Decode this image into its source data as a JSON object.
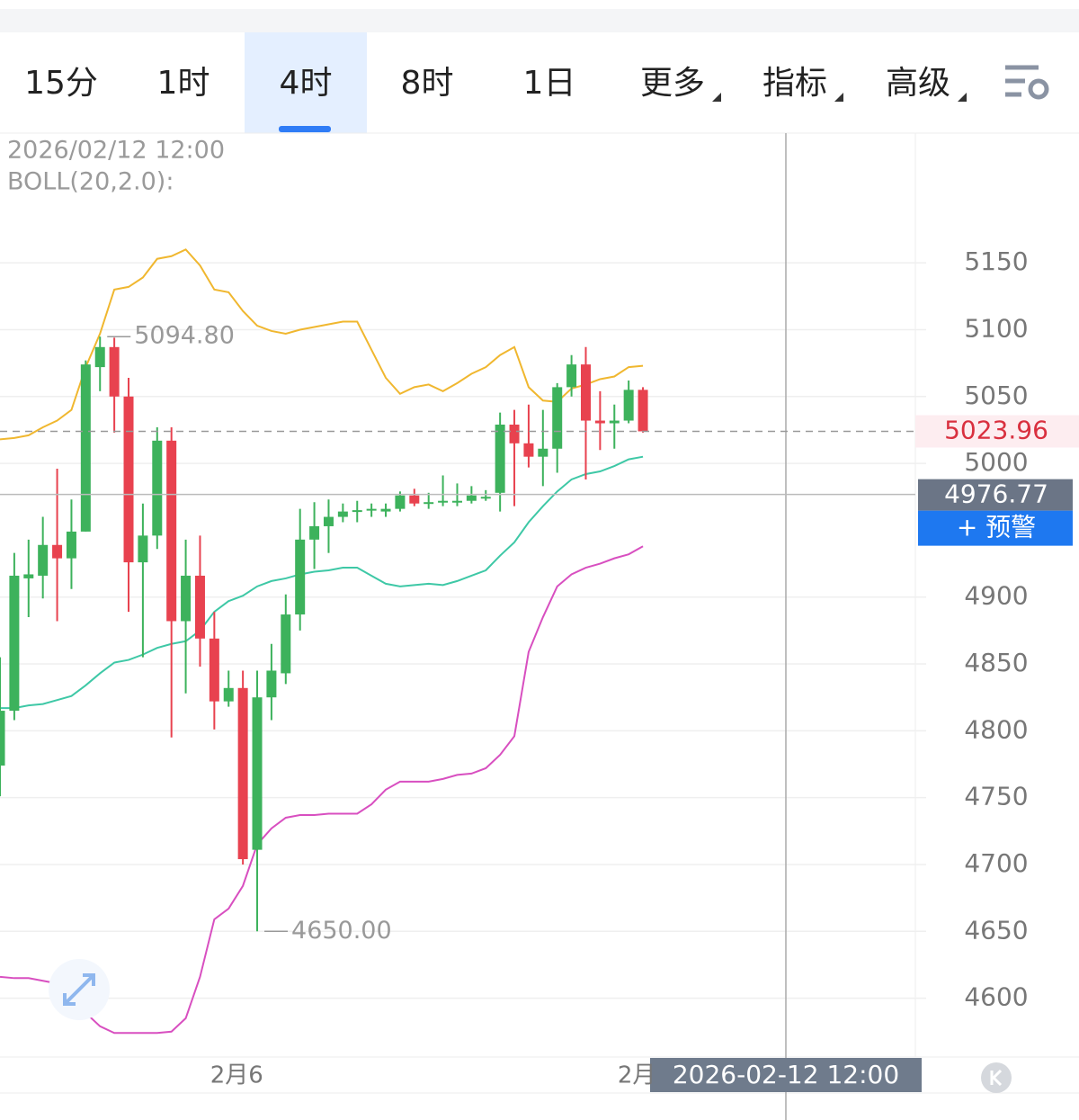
{
  "tabs": [
    "15分",
    "1时",
    "4时",
    "8时",
    "1日",
    "更多",
    "指标",
    "高级"
  ],
  "active_tab": 2,
  "chart_data": {
    "type": "candlestick",
    "info_time": "2026/02/12 12:00",
    "indicator": "BOLL(20,2.0):",
    "categories": [
      null,
      null,
      null,
      null,
      null,
      null,
      null,
      null,
      null,
      null,
      null,
      null,
      null,
      null,
      null,
      null,
      "2月6",
      null,
      null,
      null,
      null,
      null,
      null,
      null,
      null,
      null,
      null,
      null,
      null,
      null,
      null,
      null,
      null,
      null,
      null,
      null,
      null,
      null,
      null,
      null,
      null,
      null,
      null,
      null,
      "2月",
      null
    ],
    "open": [
      4774,
      4815,
      4914,
      4916,
      4939,
      4929,
      4949,
      5072,
      5087,
      5050,
      4926,
      4946,
      5017,
      4882,
      4916,
      4869,
      4822,
      4832,
      4711,
      4825,
      4843,
      4887,
      4943,
      4953,
      4960,
      4964,
      4965,
      4964,
      4966,
      4976,
      4970,
      4971,
      4971,
      4972,
      4974,
      4978,
      5029,
      5015,
      5005,
      5011,
      5057,
      5074,
      5032,
      5030,
      5032,
      5055
    ],
    "high": [
      4855,
      4933,
      4943,
      4960,
      4996,
      4973,
      5077,
      5094.8,
      5094,
      5064,
      4970,
      5027,
      5027,
      4943,
      4946,
      4889,
      4845,
      4845,
      4845,
      4865,
      4902,
      4966,
      4971,
      4973,
      4970,
      4972,
      4970,
      4970,
      4979,
      4981,
      4978,
      4991,
      4985,
      4983,
      4980,
      5038,
      5040,
      5044,
      5040,
      5060,
      5081,
      5087,
      5054,
      5044,
      5062,
      5057
    ],
    "low": [
      4751,
      4808,
      4885,
      4899,
      4882,
      4906,
      4949,
      5054,
      5023,
      4889,
      4855,
      4936,
      4795,
      4828,
      4848,
      4801,
      4818,
      4700,
      4650,
      4808,
      4835,
      4875,
      4921,
      4933,
      4956,
      4956,
      4960,
      4960,
      4964,
      4968,
      4966,
      4968,
      4968,
      4970,
      4972,
      4964,
      4968,
      4997,
      4983,
      4993,
      5050,
      4988,
      5010,
      5011,
      5030,
      5023
    ],
    "close": [
      4815,
      4916,
      4917,
      4939,
      4929,
      4949,
      5074,
      5087,
      5050,
      4926,
      4946,
      5017,
      4882,
      4916,
      4869,
      4822,
      4832,
      4704,
      4825,
      4845,
      4887,
      4943,
      4953,
      4960,
      4964,
      4965,
      4966,
      4966,
      4976,
      4970,
      4971,
      4972,
      4972,
      4976,
      4975,
      5029,
      5015,
      5005,
      5011,
      5057,
      5074,
      5032,
      5030,
      5032,
      5055,
      5023.96
    ],
    "up_color": "#3db25c",
    "down_color": "#e8424f",
    "series": [
      {
        "color": "#f0b72f",
        "values": [
          5018,
          5019,
          5021,
          5027,
          5032,
          5040,
          5072,
          5097,
          5130,
          5132,
          5139,
          5153,
          5155,
          5160,
          5148,
          5130,
          5128,
          5114,
          5103,
          5099,
          5097,
          5100,
          5102,
          5104,
          5106,
          5106,
          5085,
          5064,
          5052,
          5057,
          5059,
          5054,
          5060,
          5067,
          5072,
          5081,
          5087,
          5057,
          5047,
          5046,
          5056,
          5059,
          5063,
          5065,
          5072,
          5073
        ]
      },
      {
        "color": "#3ec8a6",
        "values": [
          4817,
          4817,
          4819,
          4820,
          4823,
          4826,
          4834,
          4843,
          4851,
          4853,
          4857,
          4862,
          4865,
          4867,
          4875,
          4889,
          4897,
          4901,
          4908,
          4912,
          4914,
          4917,
          4919,
          4920,
          4922,
          4922,
          4916,
          4910,
          4908,
          4909,
          4910,
          4909,
          4912,
          4916,
          4920,
          4931,
          4941,
          4956,
          4968,
          4979,
          4988,
          4992,
          4994,
          4998,
          5003,
          5005
        ]
      },
      {
        "color": "#d84fc0",
        "values": [
          4616,
          4615,
          4615,
          4613,
          4611,
          4606,
          4589,
          4579,
          4574,
          4574,
          4574,
          4574,
          4575,
          4585,
          4616,
          4659,
          4667,
          4684,
          4715,
          4727,
          4735,
          4737,
          4737,
          4738,
          4738,
          4738,
          4745,
          4756,
          4762,
          4762,
          4762,
          4764,
          4767,
          4768,
          4772,
          4782,
          4796,
          4859,
          4885,
          4908,
          4917,
          4922,
          4925,
          4929,
          4932,
          4938
        ]
      }
    ],
    "max_label": {
      "value": 5094.8,
      "label": "5094.80"
    },
    "min_label": {
      "value": 4650,
      "label": "4650.00"
    },
    "last_price": 5023.96,
    "crosshair": {
      "price": 4976.77,
      "time": "2026-02-12 12:00"
    },
    "alert_button": "+ 预警",
    "ylim": [
      4556,
      5247
    ],
    "yticks": [
      4600,
      4650,
      4700,
      4750,
      4800,
      4850,
      4900,
      5000,
      5050,
      5100,
      5150
    ],
    "grid": true
  }
}
